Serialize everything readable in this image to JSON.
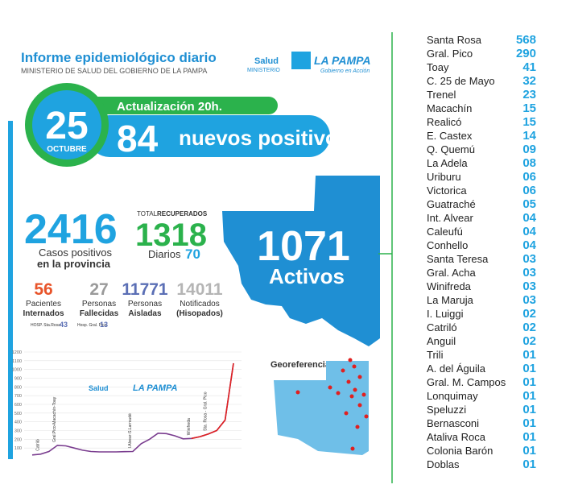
{
  "header": {
    "title": "Informe epidemiológico diario",
    "subtitle": "MINISTERIO DE SALUD DEL GOBIERNO DE LA PAMPA"
  },
  "logo": {
    "salud": "Salud",
    "ministerio": "MINISTERIO",
    "province": "LA PAMPA",
    "slogan": "Gobierno en Acción"
  },
  "date": {
    "day": "25",
    "month": "OCTUBRE"
  },
  "update": "Actualización 20h.",
  "new_cases": {
    "number": "84",
    "label": "nuevos positivos"
  },
  "total": {
    "number": "2416",
    "line1": "Casos positivos",
    "line2": "en la provincia"
  },
  "recovered": {
    "label_light": "TOTAL",
    "label_bold": "RECUPERADOS",
    "number": "1318",
    "daily_label": "Diarios",
    "daily": "70"
  },
  "active": {
    "number": "1071",
    "label": "Activos"
  },
  "stats": [
    {
      "number": "56",
      "line1": "Pacientes",
      "line2": "Internados",
      "color": "#e8542a"
    },
    {
      "number": "27",
      "line1": "Personas",
      "line2": "Fallecidas",
      "color": "#9a9a9a"
    },
    {
      "number": "11771",
      "line1": "Personas",
      "line2": "Aisladas",
      "color": "#5b6fb5"
    },
    {
      "number": "14011",
      "line1": "Notificados",
      "line2": "(Hisopados)",
      "color": "#b5b5b5"
    }
  ],
  "hospitals": [
    {
      "name": "HOSP. Sta.Rosa",
      "count": "43"
    },
    {
      "name": "Hosp. Gral. Pico",
      "count": "13"
    }
  ],
  "map_label": "Georeferencia",
  "mini_chart": {
    "yticks": [
      100,
      200,
      300,
      400,
      500,
      600,
      700,
      800,
      900,
      1000,
      1100,
      1200
    ],
    "ylim": [
      0,
      1200
    ],
    "values": [
      20,
      30,
      60,
      130,
      125,
      100,
      75,
      60,
      55,
      55,
      55,
      58,
      60,
      150,
      200,
      270,
      265,
      240,
      205,
      210,
      230,
      260,
      300,
      420,
      1071
    ],
    "annotations": [
      "Catriló",
      "Gral.Pico-Macachín-Toay",
      "I.Alvear-S.Larroudé",
      "Winifreda",
      "Sta. Rosa - Gral. Pico"
    ]
  },
  "localities": [
    {
      "name": "Santa Rosa",
      "count": "568"
    },
    {
      "name": "Gral. Pico",
      "count": "290"
    },
    {
      "name": "Toay",
      "count": "41"
    },
    {
      "name": "C. 25 de Mayo",
      "count": "32"
    },
    {
      "name": "Trenel",
      "count": "23"
    },
    {
      "name": "Macachín",
      "count": "15"
    },
    {
      "name": "Realicó",
      "count": "15"
    },
    {
      "name": "E. Castex",
      "count": "14"
    },
    {
      "name": "Q. Quemú",
      "count": "09"
    },
    {
      "name": "La Adela",
      "count": "08"
    },
    {
      "name": "Uriburu",
      "count": "06"
    },
    {
      "name": "Victorica",
      "count": "06"
    },
    {
      "name": "Guatraché",
      "count": "05"
    },
    {
      "name": "Int. Alvear",
      "count": "04"
    },
    {
      "name": "Caleufú",
      "count": "04"
    },
    {
      "name": "Conhello",
      "count": "04"
    },
    {
      "name": "Santa Teresa",
      "count": "03"
    },
    {
      "name": "Gral. Acha",
      "count": "03"
    },
    {
      "name": "Winifreda",
      "count": "03"
    },
    {
      "name": "La Maruja",
      "count": "03"
    },
    {
      "name": "I. Luiggi",
      "count": "02"
    },
    {
      "name": "Catriló",
      "count": "02"
    },
    {
      "name": "Anguil",
      "count": "02"
    },
    {
      "name": "Trili",
      "count": "01"
    },
    {
      "name": "A. del Águila",
      "count": "01"
    },
    {
      "name": "Gral. M. Campos",
      "count": "01"
    },
    {
      "name": "Lonquimay",
      "count": "01"
    },
    {
      "name": "Speluzzi",
      "count": "01"
    },
    {
      "name": "Bernasconi",
      "count": "01"
    },
    {
      "name": "Ataliva Roca",
      "count": "01"
    },
    {
      "name": "Colonia Barón",
      "count": "01"
    },
    {
      "name": "Doblas",
      "count": "01"
    }
  ]
}
